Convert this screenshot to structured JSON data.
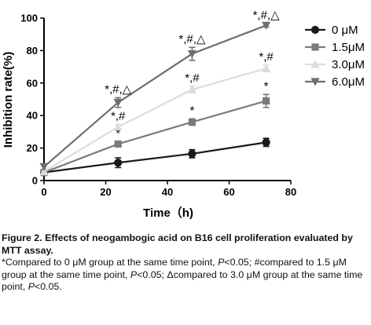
{
  "chart_data": {
    "type": "line",
    "xlabel": "Time（h)",
    "ylabel": "Inhibition rate(%)",
    "xlim": [
      0,
      80
    ],
    "ylim": [
      0,
      100
    ],
    "xticks": [
      "0",
      "20",
      "40",
      "60",
      "80"
    ],
    "yticks": [
      "0",
      "20",
      "40",
      "60",
      "80",
      "100"
    ],
    "legend_position": "right",
    "x": [
      0,
      24,
      48,
      72
    ],
    "series": [
      {
        "name": "0 μM",
        "marker": "circle",
        "color": "#1a1a1a",
        "values": [
          5,
          11,
          16.5,
          23.5
        ],
        "errors": [
          0,
          3,
          2.5,
          2.5
        ],
        "annotations": [
          "",
          "",
          "",
          ""
        ]
      },
      {
        "name": "1.5μM",
        "marker": "square",
        "color": "#7a7a7a",
        "values": [
          5,
          22.5,
          36,
          49
        ],
        "errors": [
          0,
          1.5,
          2,
          4
        ],
        "annotations": [
          "",
          "*",
          "*",
          "*"
        ]
      },
      {
        "name": "3.0μM",
        "marker": "triangle-up",
        "color": "#dcdcdc",
        "values": [
          5.5,
          33,
          56,
          69
        ],
        "errors": [
          0,
          1.5,
          2,
          2
        ],
        "annotations": [
          "",
          "*,#",
          "*,#",
          "*,#"
        ]
      },
      {
        "name": "6.0μM",
        "marker": "triangle-down",
        "color": "#6f6f6f",
        "values": [
          8.5,
          48,
          78,
          95.5
        ],
        "errors": [
          0,
          3,
          4,
          1
        ],
        "annotations": [
          "",
          "*,#,△",
          "*,#,△",
          "*,#,△"
        ]
      }
    ]
  },
  "caption": {
    "title": "Figure 2. Effects of neogambogic acid on B16 cell proliferation evaluated by MTT assay.",
    "note_parts": [
      {
        "text": "*Compared to 0 μM group at the same time point, ",
        "italic": false
      },
      {
        "text": "P",
        "italic": true
      },
      {
        "text": "<0.05; #compared to 1.5 μM group at the same time point, ",
        "italic": false
      },
      {
        "text": "P",
        "italic": true
      },
      {
        "text": "<0.05; Δcompared to 3.0 μM group at the same time point, ",
        "italic": false
      },
      {
        "text": "P",
        "italic": true
      },
      {
        "text": "<0.05.",
        "italic": false
      }
    ]
  }
}
